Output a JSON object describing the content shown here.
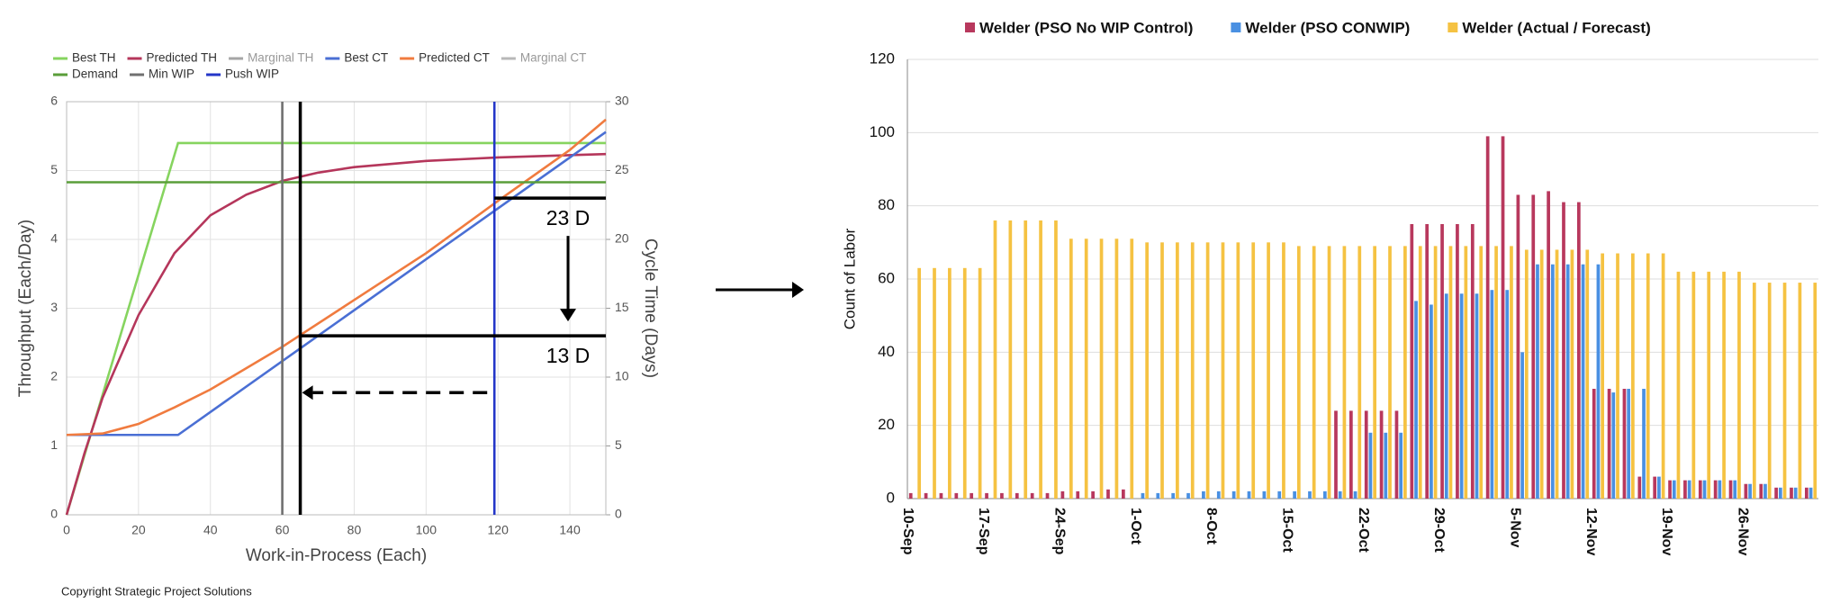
{
  "chart_data": [
    {
      "type": "line",
      "x_label": "Work-in-Process (Each)",
      "y_label": "Throughput (Each/Day)",
      "y2_label": "Cycle Time (Days)",
      "xlim": [
        0,
        150
      ],
      "xticks": [
        0,
        20,
        40,
        60,
        80,
        100,
        120,
        140
      ],
      "ylim": [
        0,
        6
      ],
      "yticks": [
        0,
        1,
        2,
        3,
        4,
        5,
        6
      ],
      "y2lim": [
        0,
        30
      ],
      "y2ticks": [
        0,
        5,
        10,
        15,
        20,
        25,
        30
      ],
      "grid": true,
      "legend": "top-left",
      "series": [
        {
          "name": "Best TH",
          "color": "#86d45f",
          "x": [
            0,
            31,
            150
          ],
          "values": [
            0,
            5.4,
            5.4
          ]
        },
        {
          "name": "Predicted TH",
          "color": "#b5365b",
          "x": [
            0,
            5,
            10,
            20,
            30,
            40,
            50,
            60,
            70,
            80,
            100,
            120,
            150
          ],
          "values": [
            0,
            0.9,
            1.7,
            2.9,
            3.8,
            4.35,
            4.65,
            4.85,
            4.97,
            5.05,
            5.14,
            5.19,
            5.24
          ]
        },
        {
          "name": "Marginal TH",
          "color": "#a6a6a6",
          "x": [],
          "values": []
        },
        {
          "name": "Best CT",
          "color": "#4a6fd4",
          "axis": "y2",
          "x": [
            0,
            31,
            150
          ],
          "values": [
            5.8,
            5.8,
            27.8
          ]
        },
        {
          "name": "Predicted CT",
          "color": "#f07b3f",
          "axis": "y2",
          "x": [
            0,
            10,
            20,
            30,
            40,
            60,
            80,
            100,
            120,
            140,
            150
          ],
          "values": [
            5.8,
            5.9,
            6.6,
            7.8,
            9.1,
            12.2,
            15.6,
            19.0,
            22.8,
            26.5,
            28.7
          ]
        },
        {
          "name": "Marginal CT",
          "color": "#b8b8b8",
          "axis": "y2",
          "x": [],
          "values": []
        },
        {
          "name": "Demand",
          "color": "#5a9e3a",
          "x": [
            0,
            150
          ],
          "values": [
            4.83,
            4.83
          ]
        },
        {
          "name": "Min WIP",
          "color": "#707070",
          "x": [
            60,
            60
          ],
          "values": [
            0,
            6
          ]
        },
        {
          "name": "Push WIP",
          "color": "#2436c8",
          "x": [
            119,
            119
          ],
          "values": [
            0,
            6
          ]
        }
      ],
      "annotations": [
        {
          "text": "23 D",
          "y2": 23
        },
        {
          "text": "13 D",
          "y2": 13
        }
      ],
      "wip_marker": 65
    },
    {
      "type": "bar",
      "y_label": "Count of Labor",
      "ylim": [
        0,
        120
      ],
      "yticks": [
        0,
        20,
        40,
        60,
        80,
        100,
        120
      ],
      "grid": true,
      "legend": "top",
      "categories": [
        "10-Sep",
        null,
        null,
        null,
        null,
        "17-Sep",
        null,
        null,
        null,
        null,
        "24-Sep",
        null,
        null,
        null,
        null,
        "1-Oct",
        null,
        null,
        null,
        null,
        "8-Oct",
        null,
        null,
        null,
        null,
        "15-Oct",
        null,
        null,
        null,
        null,
        "22-Oct",
        null,
        null,
        null,
        null,
        "29-Oct",
        null,
        null,
        null,
        null,
        "5-Nov",
        null,
        null,
        null,
        null,
        "12-Nov",
        null,
        null,
        null,
        null,
        "19-Nov",
        null,
        null,
        null,
        null,
        "26-Nov",
        null,
        null,
        null,
        null
      ],
      "series": [
        {
          "name": "Welder (PSO No WIP Control)",
          "color": "#b8385d",
          "values": [
            1.5,
            1.5,
            1.5,
            1.5,
            1.5,
            1.5,
            1.5,
            1.5,
            1.5,
            1.5,
            2,
            2,
            2,
            2.5,
            2.5,
            0,
            0,
            0,
            0,
            0,
            0,
            0,
            0,
            0,
            0,
            0,
            0,
            0,
            24,
            24,
            24,
            24,
            24,
            75,
            75,
            75,
            75,
            75,
            99,
            99,
            83,
            83,
            84,
            81,
            81,
            30,
            30,
            30,
            6,
            6,
            5,
            5,
            5,
            5,
            5,
            4,
            4,
            3,
            3,
            3
          ]
        },
        {
          "name": "Welder (PSO CONWIP)",
          "color": "#4a90e2",
          "values": [
            0,
            0,
            0,
            0,
            0,
            0,
            0,
            0,
            0,
            0,
            0,
            0,
            0,
            0,
            0,
            1.5,
            1.5,
            1.5,
            1.5,
            2,
            2,
            2,
            2,
            2,
            2,
            2,
            2,
            2,
            2,
            2,
            18,
            18,
            18,
            54,
            53,
            56,
            56,
            56,
            57,
            57,
            40,
            64,
            64,
            64,
            64,
            64,
            29,
            30,
            30,
            6,
            5,
            5,
            5,
            5,
            5,
            4,
            4,
            3,
            3,
            3
          ]
        },
        {
          "name": "Welder (Actual / Forecast)",
          "color": "#f5c242",
          "values": [
            63,
            63,
            63,
            63,
            63,
            76,
            76,
            76,
            76,
            76,
            71,
            71,
            71,
            71,
            71,
            70,
            70,
            70,
            70,
            70,
            70,
            70,
            70,
            70,
            70,
            69,
            69,
            69,
            69,
            69,
            69,
            69,
            69,
            69,
            69,
            69,
            69,
            69,
            69,
            69,
            68,
            68,
            68,
            68,
            68,
            67,
            67,
            67,
            67,
            67,
            62,
            62,
            62,
            62,
            62,
            59,
            59,
            59,
            59,
            59
          ]
        }
      ]
    }
  ],
  "footer": "Copyright Strategic Project Solutions"
}
